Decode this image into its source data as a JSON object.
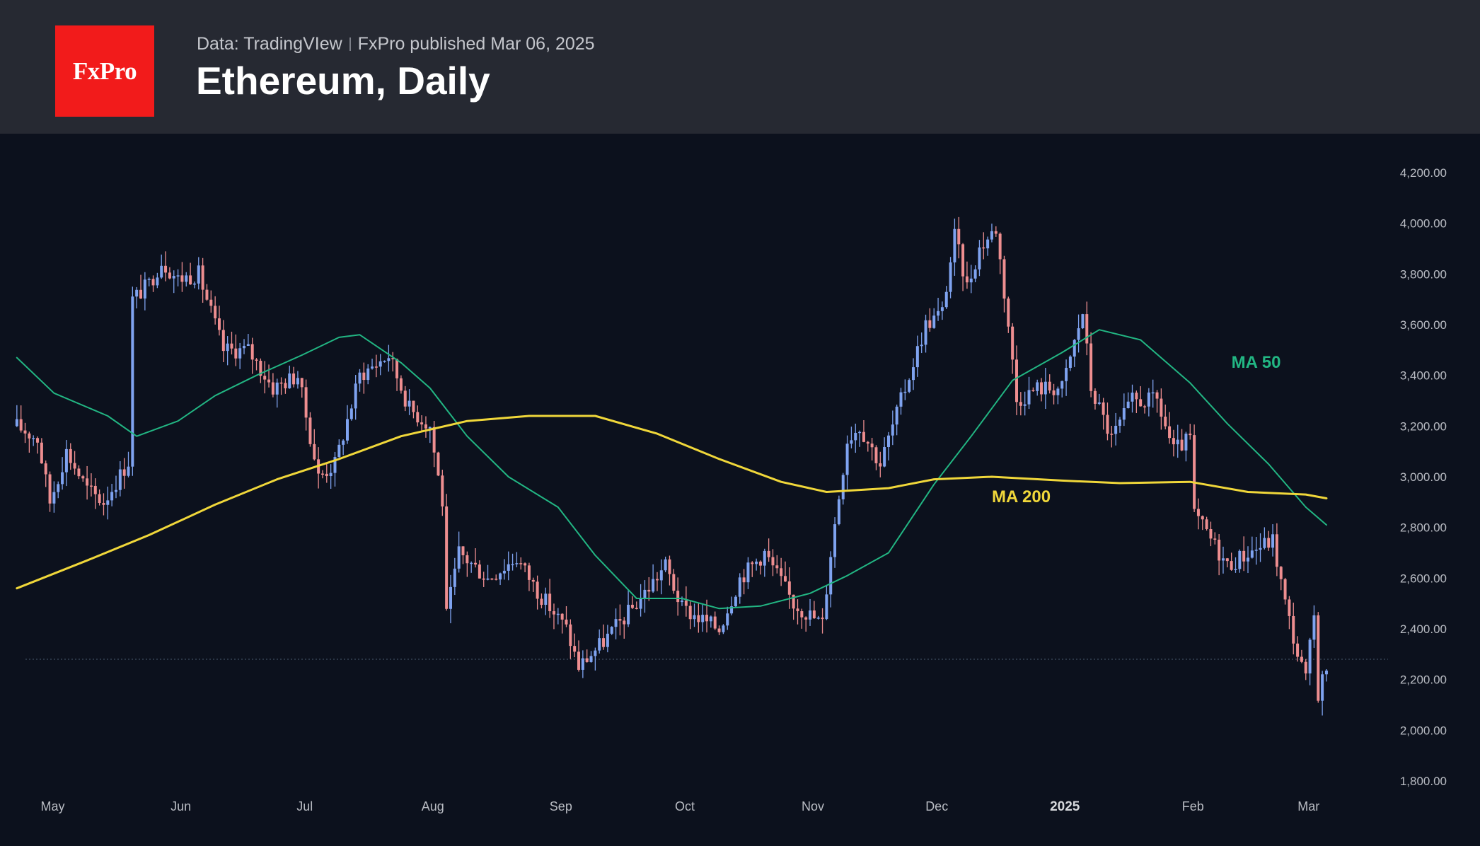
{
  "header": {
    "logo_text": "FxPro",
    "source": "Data: TradingVIew",
    "published": "FxPro published Mar 06, 2025",
    "title": "Ethereum, Daily"
  },
  "colors": {
    "background": "#0c111d",
    "header_bg": "#262932",
    "logo_bg": "#f21b1b",
    "candle_up": "#7fa3f0",
    "candle_down": "#ee8e90",
    "ma50": "#22b683",
    "ma200": "#f0d73a",
    "axis_text": "#b9bcc3",
    "price_line": "#4a5a70"
  },
  "chart_data": {
    "type": "candlestick",
    "symbol": "Ethereum",
    "timeframe": "Daily",
    "y_axis": {
      "ticks": [
        1800,
        2000,
        2200,
        2400,
        2600,
        2800,
        3000,
        3200,
        3400,
        3600,
        3800,
        4000,
        4200
      ],
      "tick_labels": [
        "1,800.00",
        "2,000.00",
        "2,200.00",
        "2,400.00",
        "2,600.00",
        "2,800.00",
        "3,000.00",
        "3,200.00",
        "3,400.00",
        "3,600.00",
        "3,800.00",
        "4,000.00",
        "4,200.00"
      ],
      "range": [
        1700,
        4350
      ]
    },
    "x_axis": {
      "labels": [
        {
          "label": "May",
          "date": "2024-05-01"
        },
        {
          "label": "Jun",
          "date": "2024-06-01"
        },
        {
          "label": "Jul",
          "date": "2024-07-01"
        },
        {
          "label": "Aug",
          "date": "2024-08-01"
        },
        {
          "label": "Sep",
          "date": "2024-09-01"
        },
        {
          "label": "Oct",
          "date": "2024-10-01"
        },
        {
          "label": "Nov",
          "date": "2024-11-01"
        },
        {
          "label": "Dec",
          "date": "2024-12-01"
        },
        {
          "label": "2025",
          "date": "2025-01-01",
          "bold": true
        },
        {
          "label": "Feb",
          "date": "2025-02-01"
        },
        {
          "label": "Mar",
          "date": "2025-03-01"
        }
      ],
      "range": [
        "2024-04-22",
        "2025-03-12"
      ]
    },
    "current_price": 2280,
    "series": [
      {
        "name": "MA 50",
        "color": "#22b683",
        "points": [
          [
            "2024-04-23",
            3470
          ],
          [
            "2024-05-02",
            3330
          ],
          [
            "2024-05-15",
            3240
          ],
          [
            "2024-05-22",
            3160
          ],
          [
            "2024-06-01",
            3220
          ],
          [
            "2024-06-10",
            3320
          ],
          [
            "2024-06-20",
            3400
          ],
          [
            "2024-07-01",
            3480
          ],
          [
            "2024-07-10",
            3550
          ],
          [
            "2024-07-15",
            3560
          ],
          [
            "2024-07-25",
            3450
          ],
          [
            "2024-08-01",
            3350
          ],
          [
            "2024-08-10",
            3160
          ],
          [
            "2024-08-20",
            3000
          ],
          [
            "2024-09-01",
            2880
          ],
          [
            "2024-09-10",
            2690
          ],
          [
            "2024-09-20",
            2520
          ],
          [
            "2024-10-01",
            2520
          ],
          [
            "2024-10-10",
            2480
          ],
          [
            "2024-10-20",
            2490
          ],
          [
            "2024-11-01",
            2540
          ],
          [
            "2024-11-10",
            2610
          ],
          [
            "2024-11-20",
            2700
          ],
          [
            "2024-12-01",
            2970
          ],
          [
            "2024-12-10",
            3160
          ],
          [
            "2024-12-20",
            3380
          ],
          [
            "2025-01-01",
            3490
          ],
          [
            "2025-01-10",
            3580
          ],
          [
            "2025-01-20",
            3540
          ],
          [
            "2025-02-01",
            3370
          ],
          [
            "2025-02-10",
            3210
          ],
          [
            "2025-02-20",
            3050
          ],
          [
            "2025-03-01",
            2880
          ],
          [
            "2025-03-06",
            2810
          ]
        ]
      },
      {
        "name": "MA 200",
        "color": "#f0d73a",
        "points": [
          [
            "2024-04-23",
            2560
          ],
          [
            "2024-05-10",
            2670
          ],
          [
            "2024-05-25",
            2770
          ],
          [
            "2024-06-10",
            2890
          ],
          [
            "2024-06-25",
            2990
          ],
          [
            "2024-07-10",
            3070
          ],
          [
            "2024-07-25",
            3160
          ],
          [
            "2024-08-10",
            3220
          ],
          [
            "2024-08-25",
            3240
          ],
          [
            "2024-09-10",
            3240
          ],
          [
            "2024-09-25",
            3170
          ],
          [
            "2024-10-10",
            3070
          ],
          [
            "2024-10-25",
            2980
          ],
          [
            "2024-11-05",
            2940
          ],
          [
            "2024-11-20",
            2955
          ],
          [
            "2024-12-01",
            2990
          ],
          [
            "2024-12-15",
            3000
          ],
          [
            "2025-01-01",
            2985
          ],
          [
            "2025-01-15",
            2975
          ],
          [
            "2025-02-01",
            2980
          ],
          [
            "2025-02-15",
            2940
          ],
          [
            "2025-03-01",
            2930
          ],
          [
            "2025-03-06",
            2915
          ]
        ]
      }
    ],
    "labels": [
      {
        "text": "MA 50",
        "date": "2025-02-11",
        "value": 3430,
        "color": "#22b683"
      },
      {
        "text": "MA 200",
        "date": "2024-12-15",
        "value": 2900,
        "color": "#f0d73a"
      }
    ],
    "price_path": [
      [
        "2024-04-23",
        3200
      ],
      [
        "2024-04-28",
        3150
      ],
      [
        "2024-05-01",
        2900
      ],
      [
        "2024-05-05",
        3100
      ],
      [
        "2024-05-10",
        2950
      ],
      [
        "2024-05-14",
        2900
      ],
      [
        "2024-05-20",
        3060
      ],
      [
        "2024-05-21",
        3700
      ],
      [
        "2024-05-25",
        3760
      ],
      [
        "2024-05-28",
        3850
      ],
      [
        "2024-06-01",
        3780
      ],
      [
        "2024-06-06",
        3800
      ],
      [
        "2024-06-12",
        3500
      ],
      [
        "2024-06-18",
        3500
      ],
      [
        "2024-06-24",
        3350
      ],
      [
        "2024-06-30",
        3400
      ],
      [
        "2024-07-05",
        3000
      ],
      [
        "2024-07-09",
        3050
      ],
      [
        "2024-07-15",
        3400
      ],
      [
        "2024-07-22",
        3480
      ],
      [
        "2024-07-27",
        3270
      ],
      [
        "2024-08-01",
        3200
      ],
      [
        "2024-08-04",
        2900
      ],
      [
        "2024-08-05",
        2450
      ],
      [
        "2024-08-08",
        2700
      ],
      [
        "2024-08-15",
        2600
      ],
      [
        "2024-08-22",
        2680
      ],
      [
        "2024-08-27",
        2550
      ],
      [
        "2024-09-03",
        2400
      ],
      [
        "2024-09-06",
        2250
      ],
      [
        "2024-09-12",
        2350
      ],
      [
        "2024-09-20",
        2500
      ],
      [
        "2024-09-27",
        2650
      ],
      [
        "2024-10-01",
        2480
      ],
      [
        "2024-10-10",
        2400
      ],
      [
        "2024-10-15",
        2600
      ],
      [
        "2024-10-21",
        2700
      ],
      [
        "2024-10-28",
        2500
      ],
      [
        "2024-11-04",
        2420
      ],
      [
        "2024-11-06",
        2700
      ],
      [
        "2024-11-10",
        3150
      ],
      [
        "2024-11-13",
        3200
      ],
      [
        "2024-11-18",
        3050
      ],
      [
        "2024-11-24",
        3350
      ],
      [
        "2024-11-29",
        3600
      ],
      [
        "2024-12-03",
        3650
      ],
      [
        "2024-12-06",
        3950
      ],
      [
        "2024-12-09",
        3750
      ],
      [
        "2024-12-12",
        3900
      ],
      [
        "2024-12-16",
        3980
      ],
      [
        "2024-12-19",
        3600
      ],
      [
        "2024-12-21",
        3300
      ],
      [
        "2024-12-26",
        3350
      ],
      [
        "2025-01-01",
        3350
      ],
      [
        "2025-01-06",
        3650
      ],
      [
        "2025-01-08",
        3350
      ],
      [
        "2025-01-13",
        3150
      ],
      [
        "2025-01-18",
        3300
      ],
      [
        "2025-01-24",
        3300
      ],
      [
        "2025-01-28",
        3100
      ],
      [
        "2025-02-01",
        3150
      ],
      [
        "2025-02-02",
        2850
      ],
      [
        "2025-02-05",
        2780
      ],
      [
        "2025-02-10",
        2650
      ],
      [
        "2025-02-15",
        2700
      ],
      [
        "2025-02-21",
        2750
      ],
      [
        "2025-02-24",
        2500
      ],
      [
        "2025-02-27",
        2300
      ],
      [
        "2025-03-01",
        2200
      ],
      [
        "2025-03-03",
        2450
      ],
      [
        "2025-03-04",
        2150
      ],
      [
        "2025-03-06",
        2250
      ]
    ]
  }
}
